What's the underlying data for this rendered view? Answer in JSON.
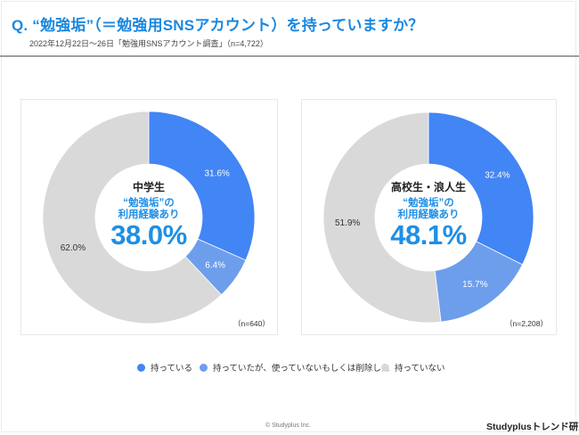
{
  "header": {
    "title": "Q. “勉強垢”（＝勉強用SNSアカウント）を持っていますか？",
    "subtitle": "2022年12月22日～26日「勉強用SNSアカウント調査」（n=4,722）"
  },
  "colors": {
    "has": "#4285f4",
    "had_deleted": "#6d9eeb",
    "never": "#d9d9d9",
    "accent": "#1e8fe6"
  },
  "chart_data": [
    {
      "type": "pie",
      "title": "中学生",
      "n_label": "（n=640）",
      "center_caption": [
        "“勉強垢”の",
        "利用経験あり"
      ],
      "center_value": "38.0%",
      "categories": [
        "持っている",
        "持っていたが、使っていないもしくは削除した",
        "持っていない"
      ],
      "values": [
        31.6,
        6.4,
        62.0
      ],
      "labels": [
        "31.6%",
        "6.4%",
        "62.0%"
      ],
      "donut": true,
      "start": "12 o'clock, clockwise"
    },
    {
      "type": "pie",
      "title": "高校生・浪人生",
      "n_label": "（n=2,208）",
      "center_caption": [
        "“勉強垢”の",
        "利用経験あり"
      ],
      "center_value": "48.1%",
      "categories": [
        "持っている",
        "持っていたが、使っていないもしくは削除した",
        "持っていない"
      ],
      "values": [
        32.4,
        15.7,
        51.9
      ],
      "labels": [
        "32.4%",
        "15.7%",
        "51.9%"
      ],
      "donut": true,
      "start": "12 o'clock, clockwise"
    }
  ],
  "legend": [
    {
      "label": "持っている",
      "color": "#4285f4"
    },
    {
      "label": "持っていたが、使っていないもしくは削除した",
      "color": "#6d9eeb"
    },
    {
      "label": "持っていない",
      "color": "#d9d9d9"
    }
  ],
  "footer": {
    "copyright": "© Studyplus Inc.",
    "brand": "Studyplusトレンド研究所"
  }
}
